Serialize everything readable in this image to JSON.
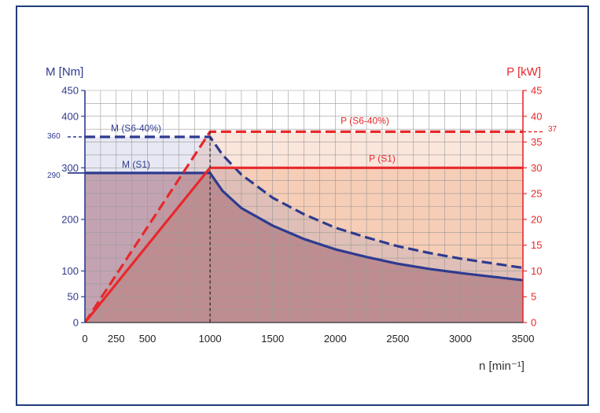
{
  "chart_data": {
    "type": "line",
    "title": "",
    "xlabel": "n [min⁻¹]",
    "ylabel_left": "M [Nm]",
    "ylabel_right": "P [kW]",
    "xlim": [
      0,
      3500
    ],
    "ylim_left": [
      0,
      450
    ],
    "ylim_right": [
      0,
      45
    ],
    "x_ticks": [
      0,
      250,
      500,
      1000,
      1500,
      2000,
      2500,
      3000,
      3500
    ],
    "y_left_ticks": [
      0,
      50,
      100,
      200,
      300,
      400,
      450
    ],
    "y_right_ticks": [
      0,
      5,
      10,
      15,
      20,
      25,
      30,
      35,
      40,
      45
    ],
    "grid": true,
    "reference_labels": {
      "left_360": "360",
      "left_290": "290",
      "right_37": "37"
    },
    "series": [
      {
        "name": "M (S1)",
        "axis": "left",
        "style": "solid",
        "color": "#2e3b8f",
        "x": [
          0,
          1000,
          1100,
          1250,
          1500,
          1750,
          2000,
          2250,
          2500,
          2750,
          3000,
          3250,
          3500
        ],
        "y": [
          290,
          290,
          255,
          222,
          188,
          162,
          142,
          127,
          114,
          104,
          96,
          89,
          82
        ]
      },
      {
        "name": "M (S6-40%)",
        "axis": "left",
        "style": "dashed",
        "color": "#2e3b8f",
        "x": [
          0,
          1000,
          1100,
          1250,
          1500,
          1750,
          2000,
          2250,
          2500,
          2750,
          3000,
          3250,
          3500
        ],
        "y": [
          360,
          360,
          325,
          287,
          242,
          210,
          184,
          165,
          148,
          135,
          124,
          115,
          106
        ]
      },
      {
        "name": "P (S1)",
        "axis": "right",
        "style": "solid",
        "color": "#e8282b",
        "x": [
          0,
          1000,
          3500
        ],
        "y": [
          0,
          30,
          30
        ]
      },
      {
        "name": "P (S6-40%)",
        "axis": "right",
        "style": "dashed",
        "color": "#e8282b",
        "x": [
          0,
          1000,
          3500
        ],
        "y": [
          0,
          37,
          37
        ]
      }
    ],
    "colors": {
      "torque": "#2e3b8f",
      "power": "#e8282b",
      "frame": "#1f3d7a",
      "grid": "#9a9a9a"
    }
  }
}
